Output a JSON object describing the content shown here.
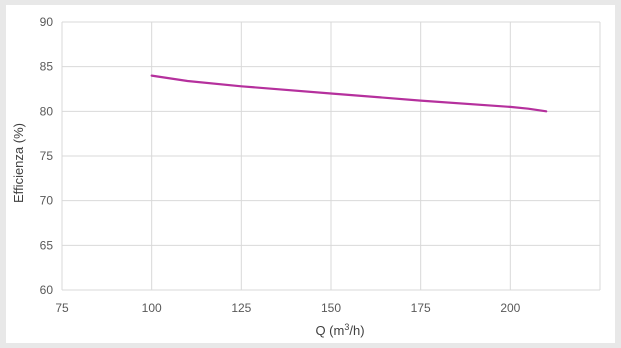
{
  "chart_data": {
    "type": "line",
    "title": "",
    "xlabel": "Q (m³/h)",
    "ylabel": "Efficienza (%)",
    "xlim": [
      75,
      225
    ],
    "ylim": [
      60,
      90
    ],
    "x_ticks": [
      75,
      100,
      125,
      150,
      175,
      200
    ],
    "y_ticks": [
      60,
      65,
      70,
      75,
      80,
      85,
      90
    ],
    "grid": true,
    "legend": "none",
    "series": [
      {
        "color": "#b5309d",
        "x": [
          100,
          110,
          125,
          150,
          175,
          200,
          205,
          210
        ],
        "y": [
          84.0,
          83.4,
          82.8,
          82.0,
          81.2,
          80.5,
          80.3,
          80.0
        ]
      }
    ]
  }
}
